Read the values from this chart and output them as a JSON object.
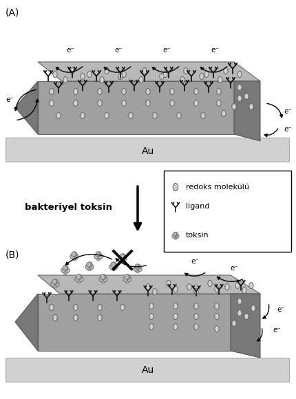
{
  "title_A": "(A)",
  "title_B": "(B)",
  "label_Au": "Au",
  "label_bakteriyel": "bakteriyel toksin",
  "legend_redoks": "redoks molekülü",
  "legend_ligand": "ligand",
  "legend_toksin": "toksin",
  "label_eminus": "e⁻",
  "bg_color": "#ffffff",
  "au_color": "#d0d0d0",
  "crystal_top_color": "#b8b8b8",
  "crystal_front_color": "#a0a0a0",
  "crystal_side_color": "#787878",
  "crystal_dark_color": "#686868"
}
